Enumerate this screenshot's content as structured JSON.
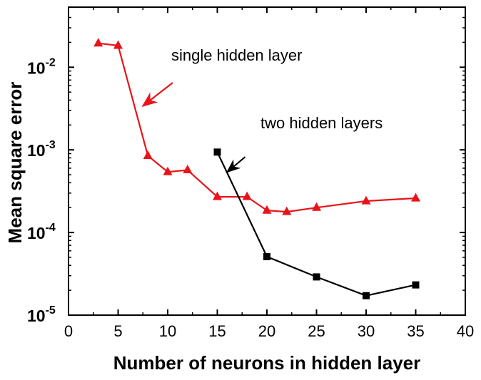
{
  "chart_data": {
    "type": "line",
    "title": "",
    "xlabel": "Number of neurons in hidden layer",
    "ylabel": "Mean square error",
    "xlim": [
      0,
      40
    ],
    "ylim": [
      1e-05,
      0.04
    ],
    "yscale": "log",
    "grid": false,
    "xticks": [
      0,
      5,
      10,
      15,
      20,
      25,
      30,
      35,
      40
    ],
    "xtick_labels": [
      "0",
      "5",
      "10",
      "15",
      "20",
      "25",
      "30",
      "35",
      "40"
    ],
    "yticks": [
      1e-05,
      0.0001,
      0.001,
      0.01
    ],
    "ytick_labels": [
      {
        "base": "10",
        "exp": "-5"
      },
      {
        "base": "10",
        "exp": "-4"
      },
      {
        "base": "10",
        "exp": "-3"
      },
      {
        "base": "10",
        "exp": "-2"
      }
    ],
    "series": [
      {
        "color": "#e8141a",
        "marker": "triangle",
        "x": [
          3,
          5,
          8,
          10,
          12,
          15,
          18,
          20,
          22,
          25,
          30,
          35
        ],
        "y": [
          0.0195,
          0.0183,
          0.00085,
          0.00054,
          0.00057,
          0.00027,
          0.00027,
          0.000185,
          0.000178,
          0.0002,
          0.00024,
          0.00026
        ]
      },
      {
        "color": "#000000",
        "marker": "square",
        "x": [
          15,
          20,
          25,
          30,
          35
        ],
        "y": [
          0.00094,
          5.1e-05,
          2.9e-05,
          1.72e-05,
          2.32e-05
        ]
      }
    ],
    "annotations": [
      {
        "text": "single hidden layer",
        "arrow_from": [
          10.5,
          0.0065
        ],
        "arrow_to": [
          7.5,
          0.0034
        ]
      },
      {
        "text": "two hidden layers",
        "arrow_from": [
          17.8,
          0.00082
        ],
        "arrow_to": [
          16.0,
          0.00054
        ]
      }
    ]
  }
}
